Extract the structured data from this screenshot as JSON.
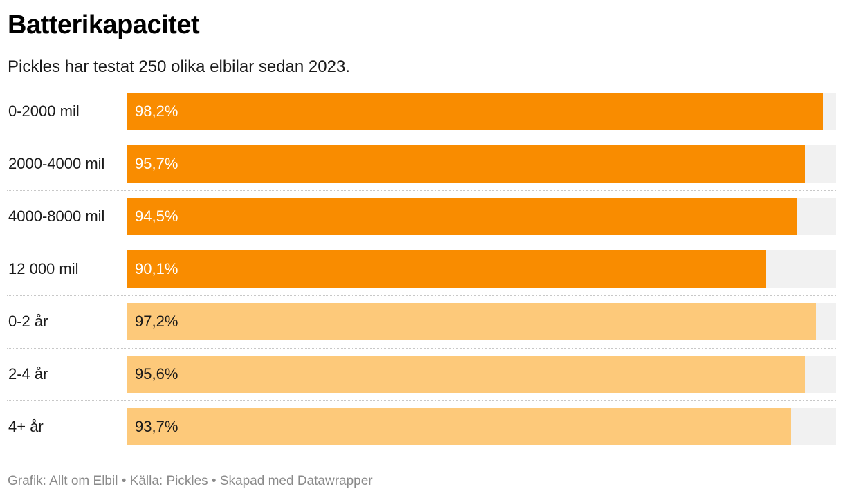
{
  "title": "Batterikapacitet",
  "subtitle": "Pickles har testat 250 olika elbilar sedan 2023.",
  "footer": {
    "grafik": "Grafik: Allt om Elbil",
    "sep1": " • ",
    "kalla": "Källa: Pickles",
    "sep2": " • ",
    "skapad": "Skapad med Datawrapper"
  },
  "colors": {
    "dark_orange": "#f98c00",
    "light_orange": "#fdc97a",
    "track": "#f1f1f1",
    "text_on_dark": "#ffffff",
    "text_on_light": "#1a1a1a"
  },
  "chart_data": {
    "type": "bar",
    "orientation": "horizontal",
    "title": "Batterikapacitet",
    "subtitle": "Pickles har testat 250 olika elbilar sedan 2023.",
    "xlim": [
      0,
      100
    ],
    "categories": [
      "0-2000 mil",
      "2000-4000 mil",
      "4000-8000 mil",
      "12 000 mil",
      "0-2 år",
      "2-4 år",
      "4+ år"
    ],
    "values": [
      98.2,
      95.7,
      94.5,
      90.1,
      97.2,
      95.6,
      93.7
    ],
    "value_labels": [
      "98,2%",
      "95,7%",
      "94,5%",
      "90,1%",
      "97,2%",
      "95,6%",
      "93,7%"
    ],
    "groups": [
      "mil",
      "mil",
      "mil",
      "mil",
      "år",
      "år",
      "år"
    ],
    "group_colors": {
      "mil": "#f98c00",
      "år": "#fdc97a"
    }
  }
}
